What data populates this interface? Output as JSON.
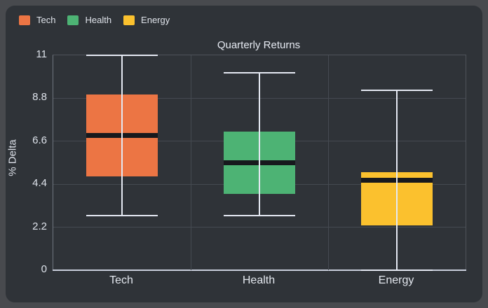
{
  "window": {
    "background_color": "#484a4e",
    "panel_color": "#2f3338"
  },
  "chart_data": {
    "type": "box",
    "title": "Quarterly Returns",
    "ylabel": "% Delta",
    "xlabel": "",
    "categories": [
      "Tech",
      "Health",
      "Energy"
    ],
    "yticks": [
      "0",
      "2.2",
      "4.4",
      "6.6",
      "8.8",
      "11"
    ],
    "ylim": [
      0,
      11
    ],
    "grid": true,
    "legend_position": "top-left",
    "legend_entries": [
      "Tech",
      "Health",
      "Energy"
    ],
    "series": [
      {
        "name": "Tech",
        "color": "#ec7544",
        "min": 2.8,
        "q1": 4.8,
        "median": 6.9,
        "q3": 9.0,
        "max": 11.0
      },
      {
        "name": "Health",
        "color": "#4db374",
        "min": 2.8,
        "q1": 3.9,
        "median": 5.5,
        "q3": 7.1,
        "max": 10.1
      },
      {
        "name": "Energy",
        "color": "#fbc12e",
        "min": 0.0,
        "q1": 2.3,
        "median": 4.6,
        "q3": 5.0,
        "max": 9.2
      }
    ],
    "whisker_color": "#e5e9f3",
    "median_color": "#17191d",
    "gridline_color": "#454a51",
    "axis_color": "#c9cedb"
  }
}
